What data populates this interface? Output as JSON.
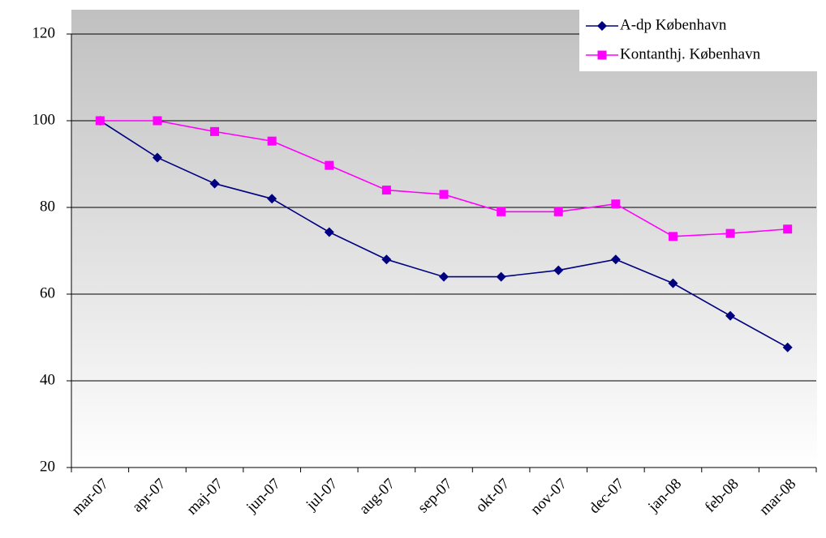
{
  "chart_data": {
    "type": "line",
    "categories": [
      "mar-07",
      "apr-07",
      "maj-07",
      "jun-07",
      "jul-07",
      "aug-07",
      "sep-07",
      "okt-07",
      "nov-07",
      "dec-07",
      "jan-08",
      "feb-08",
      "mar-08"
    ],
    "series": [
      {
        "name": "A-dp København",
        "color": "#000080",
        "marker": "diamond",
        "values": [
          100,
          91.5,
          85.5,
          82,
          74.3,
          68,
          64,
          64,
          65.5,
          68,
          62.5,
          55,
          47.7
        ]
      },
      {
        "name": "Kontanthj. København",
        "color": "#ff00ff",
        "marker": "square",
        "values": [
          100,
          100,
          97.5,
          95.3,
          89.7,
          84,
          83,
          79,
          79,
          80.8,
          73.3,
          74,
          75
        ]
      }
    ],
    "ylim": [
      20,
      120
    ],
    "yticks": [
      20,
      40,
      60,
      80,
      100,
      120
    ],
    "grid": true,
    "legend": "top-right"
  }
}
